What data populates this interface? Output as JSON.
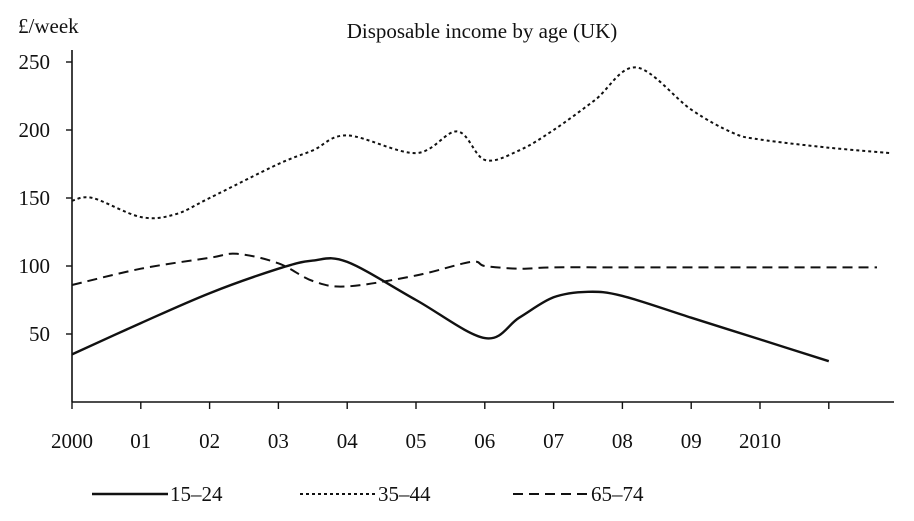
{
  "chart_data": {
    "type": "line",
    "title": "Disposable income by age (UK)",
    "ylabel": "£/week",
    "xlabel": "",
    "ylim": [
      0,
      250
    ],
    "y_ticks": [
      50,
      100,
      150,
      200,
      250
    ],
    "x_ticks": [
      {
        "x": 2000,
        "label": "2000"
      },
      {
        "x": 2001,
        "label": "01"
      },
      {
        "x": 2002,
        "label": "02"
      },
      {
        "x": 2003,
        "label": "03"
      },
      {
        "x": 2004,
        "label": "04"
      },
      {
        "x": 2005,
        "label": "05"
      },
      {
        "x": 2006,
        "label": "06"
      },
      {
        "x": 2007,
        "label": "07"
      },
      {
        "x": 2008,
        "label": "08"
      },
      {
        "x": 2009,
        "label": "09"
      },
      {
        "x": 2010,
        "label": "2010"
      },
      {
        "x": 2011,
        "label": ""
      }
    ],
    "xlim": [
      2000,
      2011.9
    ],
    "grid": false,
    "legend_position": "bottom",
    "series": [
      {
        "name": "15–24",
        "color": "#111111",
        "style": "solid",
        "x": [
          2000,
          2001,
          2002,
          2003,
          2003.5,
          2004,
          2005,
          2006,
          2006.5,
          2007,
          2007.5,
          2008,
          2009,
          2010,
          2011
        ],
        "y": [
          35,
          58,
          80,
          98,
          104,
          103,
          75,
          47,
          62,
          77,
          81,
          78,
          62,
          46,
          30
        ]
      },
      {
        "name": "35–44",
        "color": "#111111",
        "style": "dotted",
        "x": [
          2000,
          2000.3,
          2001,
          2001.5,
          2002,
          2003,
          2003.5,
          2004,
          2005,
          2005.6,
          2006,
          2006.5,
          2007,
          2007.6,
          2008.2,
          2009,
          2009.6,
          2010,
          2011,
          2011.9
        ],
        "y": [
          148,
          150,
          136,
          138,
          150,
          175,
          185,
          196,
          183,
          199,
          178,
          185,
          200,
          222,
          246,
          215,
          198,
          193,
          187,
          183
        ]
      },
      {
        "name": "65–74",
        "color": "#111111",
        "style": "dashed",
        "x": [
          2000,
          2001,
          2002,
          2002.4,
          2003,
          2003.5,
          2004,
          2005,
          2005.8,
          2006,
          2006.5,
          2007,
          2008,
          2009,
          2010,
          2011,
          2011.7
        ],
        "y": [
          86,
          98,
          106,
          109,
          102,
          89,
          85,
          93,
          103,
          100,
          98,
          99,
          99,
          99,
          99,
          99,
          99
        ]
      }
    ]
  }
}
